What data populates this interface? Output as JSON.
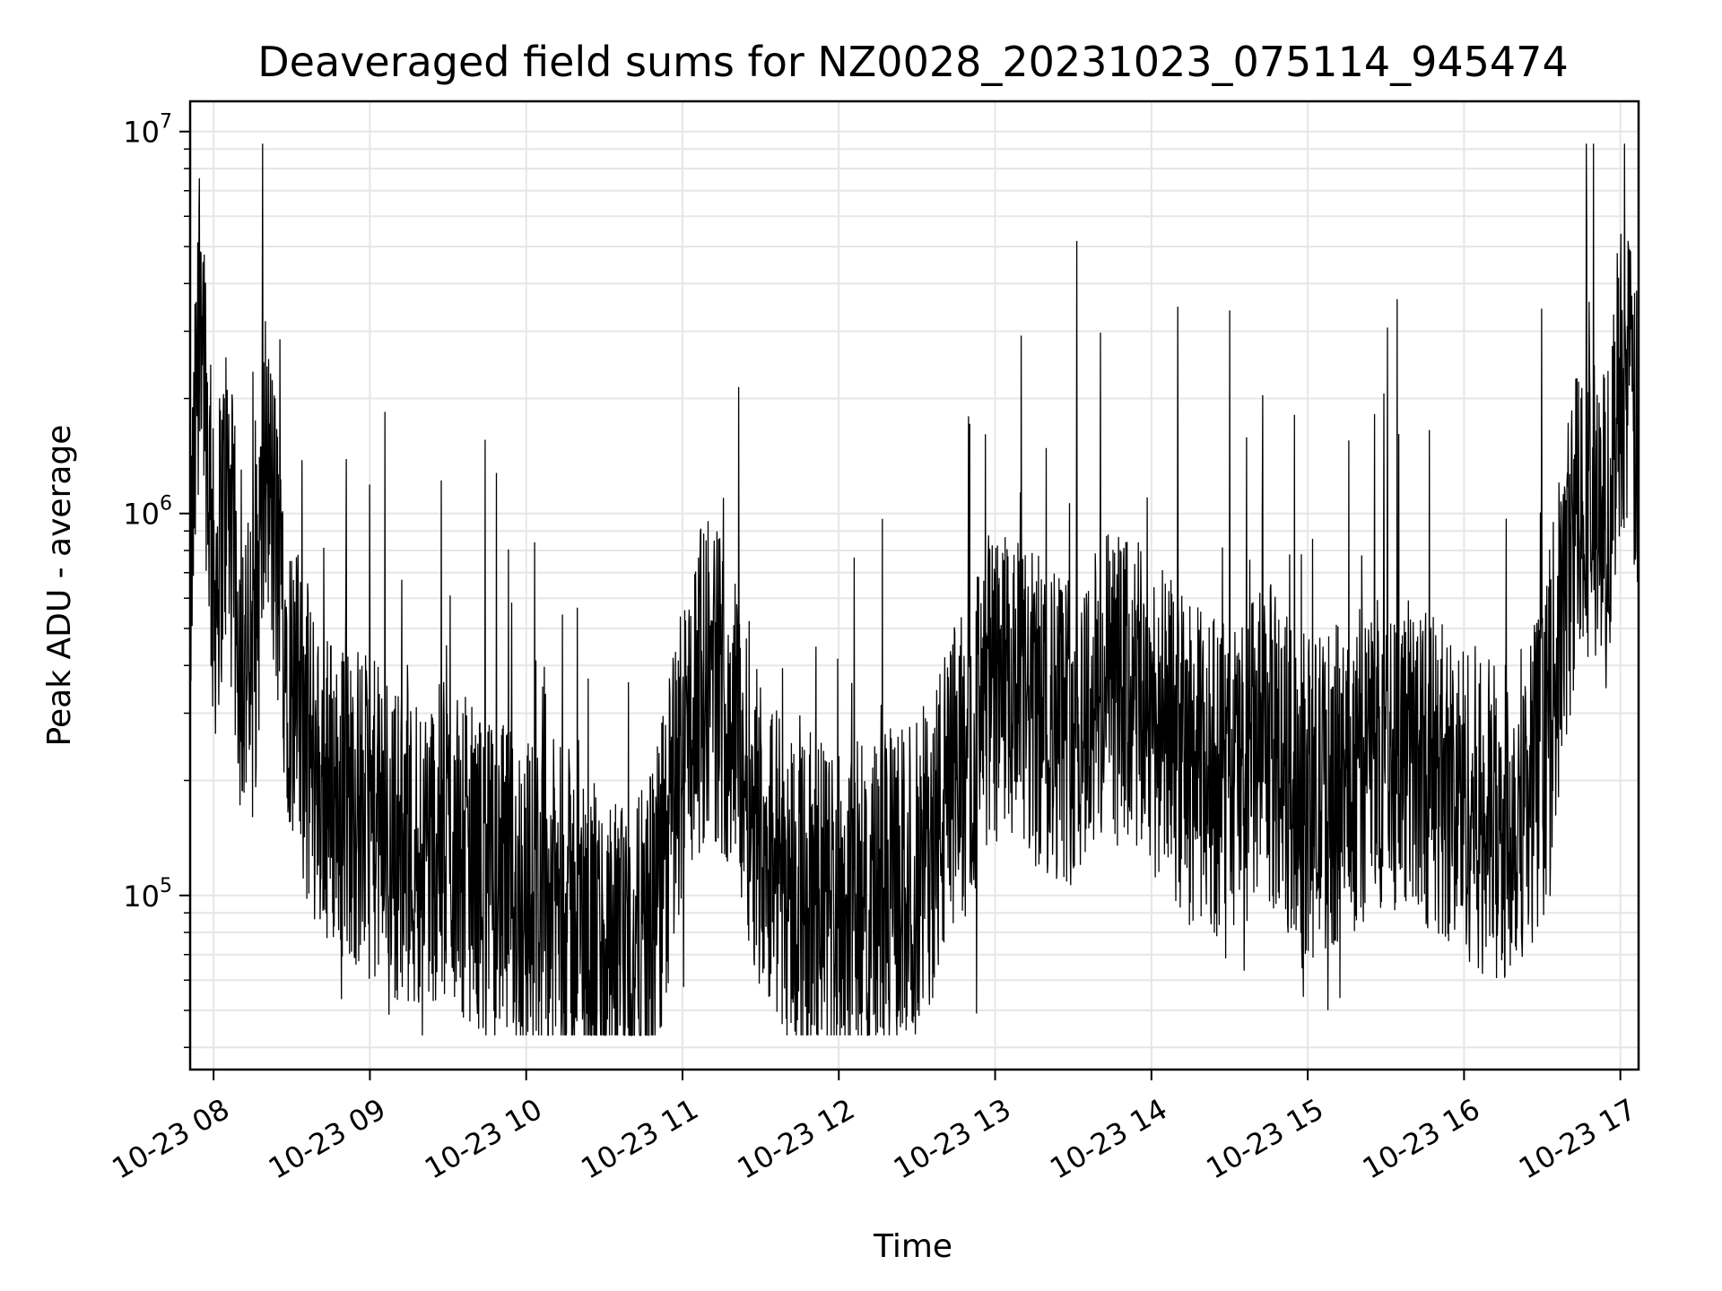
{
  "chart_data": {
    "type": "line",
    "title": "Deaveraged field sums for NZ0028_20231023_075114_945474",
    "xlabel": "Time",
    "ylabel": "Peak ADU - average",
    "yscale": "log",
    "ylim": [
      35000,
      12000000
    ],
    "xlim_hours": [
      "07:51",
      "17:07"
    ],
    "grid": true,
    "legend": "none",
    "line_color": "#000000",
    "x_ticks": [
      {
        "label": "10-23 08",
        "hour": 8
      },
      {
        "label": "10-23 09",
        "hour": 9
      },
      {
        "label": "10-23 10",
        "hour": 10
      },
      {
        "label": "10-23 11",
        "hour": 11
      },
      {
        "label": "10-23 12",
        "hour": 12
      },
      {
        "label": "10-23 13",
        "hour": 13
      },
      {
        "label": "10-23 14",
        "hour": 14
      },
      {
        "label": "10-23 15",
        "hour": 15
      },
      {
        "label": "10-23 16",
        "hour": 16
      },
      {
        "label": "10-23 17",
        "hour": 17
      }
    ],
    "y_ticks": [
      {
        "base": "10",
        "exp": "5",
        "value": 100000
      },
      {
        "base": "10",
        "exp": "6",
        "value": 1000000
      },
      {
        "base": "10",
        "exp": "7",
        "value": 10000000
      }
    ],
    "series": [
      {
        "time": [
          "07:51",
          "07:53",
          "07:55",
          "07:57",
          "08:00",
          "08:05",
          "08:10",
          "08:15",
          "08:20",
          "08:25",
          "08:30",
          "08:40",
          "08:50",
          "09:00",
          "09:15",
          "09:30",
          "09:45",
          "10:00",
          "10:15",
          "10:30",
          "10:40",
          "10:50",
          "11:00",
          "11:10",
          "11:20",
          "11:30",
          "11:40",
          "11:50",
          "12:00",
          "12:15",
          "12:30",
          "12:45",
          "13:00",
          "13:15",
          "13:30",
          "13:45",
          "14:00",
          "14:15",
          "14:30",
          "14:45",
          "15:00",
          "15:15",
          "15:30",
          "15:45",
          "16:00",
          "16:15",
          "16:30",
          "16:40",
          "16:45",
          "16:50",
          "16:55",
          "17:00",
          "17:05",
          "17:07"
        ],
        "values": [
          600000,
          1500000,
          5000000,
          2000000,
          600000,
          1200000,
          450000,
          350000,
          1400000,
          700000,
          350000,
          200000,
          180000,
          160000,
          130000,
          140000,
          110000,
          100000,
          95000,
          70000,
          60000,
          90000,
          250000,
          400000,
          280000,
          150000,
          110000,
          100000,
          95000,
          100000,
          110000,
          200000,
          350000,
          300000,
          280000,
          350000,
          300000,
          220000,
          200000,
          250000,
          180000,
          200000,
          250000,
          220000,
          180000,
          150000,
          220000,
          700000,
          1200000,
          1000000,
          900000,
          2500000,
          1800000,
          1300000
        ]
      }
    ]
  }
}
